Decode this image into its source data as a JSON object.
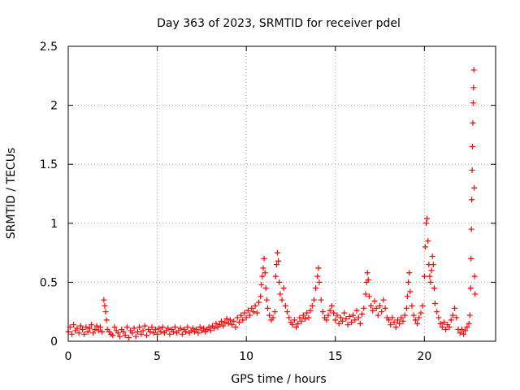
{
  "chart_data": {
    "type": "scatter",
    "title": "Day 363 of 2023, SRMTID for receiver pdel",
    "xlabel": "GPS time / hours",
    "ylabel": "SRMTID / TECUs",
    "xlim": [
      0,
      24
    ],
    "ylim": [
      0,
      2.5
    ],
    "grid": true,
    "marker": "+",
    "colors": {
      "series": "#ff0000",
      "grid": "#a0a0a0",
      "axis": "#000000"
    },
    "x_ticks": [
      {
        "value": 0,
        "label": "0"
      },
      {
        "value": 5,
        "label": "5"
      },
      {
        "value": 10,
        "label": "10"
      },
      {
        "value": 15,
        "label": "15"
      },
      {
        "value": 20,
        "label": "20"
      }
    ],
    "y_ticks": [
      {
        "value": 0,
        "label": "0"
      },
      {
        "value": 0.5,
        "label": "0.5"
      },
      {
        "value": 1,
        "label": "1"
      },
      {
        "value": 1.5,
        "label": "1.5"
      },
      {
        "value": 2,
        "label": "2"
      },
      {
        "value": 2.5,
        "label": "2.5"
      }
    ],
    "series": [
      {
        "name": "SRMTID",
        "points": [
          [
            0.0,
            0.08
          ],
          [
            0.1,
            0.12
          ],
          [
            0.2,
            0.06
          ],
          [
            0.3,
            0.14
          ],
          [
            0.4,
            0.09
          ],
          [
            0.5,
            0.11
          ],
          [
            0.6,
            0.07
          ],
          [
            0.7,
            0.13
          ],
          [
            0.8,
            0.1
          ],
          [
            0.9,
            0.06
          ],
          [
            1.0,
            0.12
          ],
          [
            1.1,
            0.08
          ],
          [
            1.2,
            0.11
          ],
          [
            1.3,
            0.14
          ],
          [
            1.4,
            0.07
          ],
          [
            1.5,
            0.1
          ],
          [
            1.6,
            0.13
          ],
          [
            1.7,
            0.09
          ],
          [
            1.8,
            0.12
          ],
          [
            1.9,
            0.08
          ],
          [
            2.0,
            0.35
          ],
          [
            2.05,
            0.3
          ],
          [
            2.1,
            0.25
          ],
          [
            2.15,
            0.18
          ],
          [
            2.2,
            0.1
          ],
          [
            2.3,
            0.08
          ],
          [
            2.4,
            0.06
          ],
          [
            2.5,
            0.05
          ],
          [
            2.6,
            0.12
          ],
          [
            2.7,
            0.09
          ],
          [
            2.8,
            0.07
          ],
          [
            2.9,
            0.04
          ],
          [
            3.0,
            0.1
          ],
          [
            3.1,
            0.08
          ],
          [
            3.2,
            0.05
          ],
          [
            3.3,
            0.12
          ],
          [
            3.4,
            0.03
          ],
          [
            3.5,
            0.09
          ],
          [
            3.6,
            0.07
          ],
          [
            3.7,
            0.11
          ],
          [
            3.8,
            0.04
          ],
          [
            3.9,
            0.08
          ],
          [
            4.0,
            0.12
          ],
          [
            4.1,
            0.06
          ],
          [
            4.2,
            0.09
          ],
          [
            4.3,
            0.13
          ],
          [
            4.4,
            0.05
          ],
          [
            4.5,
            0.1
          ],
          [
            4.6,
            0.08
          ],
          [
            4.7,
            0.12
          ],
          [
            4.8,
            0.07
          ],
          [
            4.9,
            0.1
          ],
          [
            5.0,
            0.06
          ],
          [
            5.1,
            0.11
          ],
          [
            5.2,
            0.08
          ],
          [
            5.3,
            0.12
          ],
          [
            5.4,
            0.07
          ],
          [
            5.5,
            0.09
          ],
          [
            5.6,
            0.11
          ],
          [
            5.7,
            0.06
          ],
          [
            5.8,
            0.1
          ],
          [
            5.9,
            0.08
          ],
          [
            6.0,
            0.12
          ],
          [
            6.1,
            0.07
          ],
          [
            6.2,
            0.09
          ],
          [
            6.3,
            0.11
          ],
          [
            6.4,
            0.06
          ],
          [
            6.5,
            0.1
          ],
          [
            6.6,
            0.08
          ],
          [
            6.7,
            0.12
          ],
          [
            6.8,
            0.07
          ],
          [
            6.9,
            0.09
          ],
          [
            7.0,
            0.11
          ],
          [
            7.1,
            0.08
          ],
          [
            7.2,
            0.1
          ],
          [
            7.3,
            0.07
          ],
          [
            7.4,
            0.12
          ],
          [
            7.5,
            0.09
          ],
          [
            7.6,
            0.11
          ],
          [
            7.7,
            0.08
          ],
          [
            7.8,
            0.1
          ],
          [
            7.9,
            0.12
          ],
          [
            8.0,
            0.09
          ],
          [
            8.1,
            0.13
          ],
          [
            8.2,
            0.11
          ],
          [
            8.3,
            0.15
          ],
          [
            8.4,
            0.12
          ],
          [
            8.5,
            0.14
          ],
          [
            8.6,
            0.17
          ],
          [
            8.7,
            0.13
          ],
          [
            8.8,
            0.16
          ],
          [
            8.9,
            0.19
          ],
          [
            9.0,
            0.15
          ],
          [
            9.1,
            0.18
          ],
          [
            9.2,
            0.14
          ],
          [
            9.3,
            0.17
          ],
          [
            9.4,
            0.12
          ],
          [
            9.5,
            0.2
          ],
          [
            9.6,
            0.16
          ],
          [
            9.7,
            0.22
          ],
          [
            9.8,
            0.18
          ],
          [
            9.9,
            0.24
          ],
          [
            10.0,
            0.2
          ],
          [
            10.1,
            0.26
          ],
          [
            10.2,
            0.22
          ],
          [
            10.3,
            0.28
          ],
          [
            10.4,
            0.25
          ],
          [
            10.5,
            0.3
          ],
          [
            10.6,
            0.24
          ],
          [
            10.7,
            0.33
          ],
          [
            10.8,
            0.38
          ],
          [
            10.85,
            0.48
          ],
          [
            10.9,
            0.55
          ],
          [
            10.95,
            0.62
          ],
          [
            11.0,
            0.7
          ],
          [
            11.05,
            0.58
          ],
          [
            11.1,
            0.45
          ],
          [
            11.15,
            0.35
          ],
          [
            11.2,
            0.28
          ],
          [
            11.3,
            0.22
          ],
          [
            11.4,
            0.18
          ],
          [
            11.5,
            0.2
          ],
          [
            11.6,
            0.25
          ],
          [
            11.65,
            0.55
          ],
          [
            11.7,
            0.65
          ],
          [
            11.75,
            0.75
          ],
          [
            11.8,
            0.68
          ],
          [
            11.85,
            0.5
          ],
          [
            11.9,
            0.4
          ],
          [
            12.0,
            0.35
          ],
          [
            12.1,
            0.45
          ],
          [
            12.2,
            0.3
          ],
          [
            12.3,
            0.25
          ],
          [
            12.4,
            0.2
          ],
          [
            12.5,
            0.16
          ],
          [
            12.6,
            0.14
          ],
          [
            12.7,
            0.18
          ],
          [
            12.8,
            0.12
          ],
          [
            12.9,
            0.15
          ],
          [
            13.0,
            0.2
          ],
          [
            13.1,
            0.17
          ],
          [
            13.2,
            0.22
          ],
          [
            13.3,
            0.19
          ],
          [
            13.4,
            0.24
          ],
          [
            13.5,
            0.2
          ],
          [
            13.6,
            0.26
          ],
          [
            13.7,
            0.3
          ],
          [
            13.8,
            0.35
          ],
          [
            13.9,
            0.45
          ],
          [
            14.0,
            0.55
          ],
          [
            14.05,
            0.62
          ],
          [
            14.1,
            0.5
          ],
          [
            14.2,
            0.35
          ],
          [
            14.3,
            0.25
          ],
          [
            14.4,
            0.2
          ],
          [
            14.5,
            0.18
          ],
          [
            14.6,
            0.22
          ],
          [
            14.7,
            0.26
          ],
          [
            14.8,
            0.3
          ],
          [
            14.9,
            0.24
          ],
          [
            15.0,
            0.18
          ],
          [
            15.1,
            0.22
          ],
          [
            15.2,
            0.15
          ],
          [
            15.3,
            0.2
          ],
          [
            15.4,
            0.17
          ],
          [
            15.5,
            0.24
          ],
          [
            15.6,
            0.19
          ],
          [
            15.7,
            0.14
          ],
          [
            15.8,
            0.21
          ],
          [
            15.9,
            0.16
          ],
          [
            16.0,
            0.22
          ],
          [
            16.1,
            0.18
          ],
          [
            16.2,
            0.26
          ],
          [
            16.3,
            0.2
          ],
          [
            16.4,
            0.15
          ],
          [
            16.5,
            0.23
          ],
          [
            16.6,
            0.28
          ],
          [
            16.7,
            0.4
          ],
          [
            16.75,
            0.5
          ],
          [
            16.8,
            0.58
          ],
          [
            16.85,
            0.52
          ],
          [
            16.9,
            0.38
          ],
          [
            17.0,
            0.3
          ],
          [
            17.1,
            0.26
          ],
          [
            17.2,
            0.34
          ],
          [
            17.3,
            0.28
          ],
          [
            17.4,
            0.22
          ],
          [
            17.5,
            0.3
          ],
          [
            17.6,
            0.25
          ],
          [
            17.7,
            0.35
          ],
          [
            17.8,
            0.28
          ],
          [
            17.9,
            0.2
          ],
          [
            18.0,
            0.18
          ],
          [
            18.1,
            0.14
          ],
          [
            18.2,
            0.2
          ],
          [
            18.3,
            0.16
          ],
          [
            18.4,
            0.12
          ],
          [
            18.5,
            0.18
          ],
          [
            18.6,
            0.15
          ],
          [
            18.7,
            0.2
          ],
          [
            18.8,
            0.17
          ],
          [
            18.9,
            0.22
          ],
          [
            19.0,
            0.28
          ],
          [
            19.05,
            0.38
          ],
          [
            19.1,
            0.5
          ],
          [
            19.15,
            0.58
          ],
          [
            19.2,
            0.42
          ],
          [
            19.3,
            0.3
          ],
          [
            19.4,
            0.22
          ],
          [
            19.5,
            0.18
          ],
          [
            19.6,
            0.15
          ],
          [
            19.7,
            0.2
          ],
          [
            19.8,
            0.24
          ],
          [
            19.9,
            0.3
          ],
          [
            20.0,
            0.55
          ],
          [
            20.05,
            0.8
          ],
          [
            20.1,
            1.0
          ],
          [
            20.15,
            1.04
          ],
          [
            20.2,
            0.85
          ],
          [
            20.25,
            0.65
          ],
          [
            20.3,
            0.55
          ],
          [
            20.35,
            0.5
          ],
          [
            20.4,
            0.6
          ],
          [
            20.45,
            0.72
          ],
          [
            20.5,
            0.65
          ],
          [
            20.55,
            0.45
          ],
          [
            20.6,
            0.32
          ],
          [
            20.7,
            0.25
          ],
          [
            20.8,
            0.2
          ],
          [
            20.9,
            0.15
          ],
          [
            21.0,
            0.12
          ],
          [
            21.1,
            0.16
          ],
          [
            21.2,
            0.1
          ],
          [
            21.3,
            0.14
          ],
          [
            21.4,
            0.12
          ],
          [
            21.5,
            0.18
          ],
          [
            21.6,
            0.22
          ],
          [
            21.7,
            0.28
          ],
          [
            21.8,
            0.2
          ],
          [
            21.9,
            0.1
          ],
          [
            22.0,
            0.07
          ],
          [
            22.1,
            0.1
          ],
          [
            22.2,
            0.06
          ],
          [
            22.3,
            0.09
          ],
          [
            22.4,
            0.12
          ],
          [
            22.5,
            0.15
          ],
          [
            22.55,
            0.22
          ],
          [
            22.6,
            0.45
          ],
          [
            22.62,
            0.7
          ],
          [
            22.64,
            0.95
          ],
          [
            22.66,
            1.2
          ],
          [
            22.68,
            1.45
          ],
          [
            22.7,
            1.65
          ],
          [
            22.72,
            1.85
          ],
          [
            22.74,
            2.02
          ],
          [
            22.76,
            2.15
          ],
          [
            22.78,
            2.3
          ],
          [
            22.8,
            1.3
          ],
          [
            22.82,
            0.55
          ],
          [
            22.85,
            0.4
          ]
        ]
      }
    ]
  }
}
